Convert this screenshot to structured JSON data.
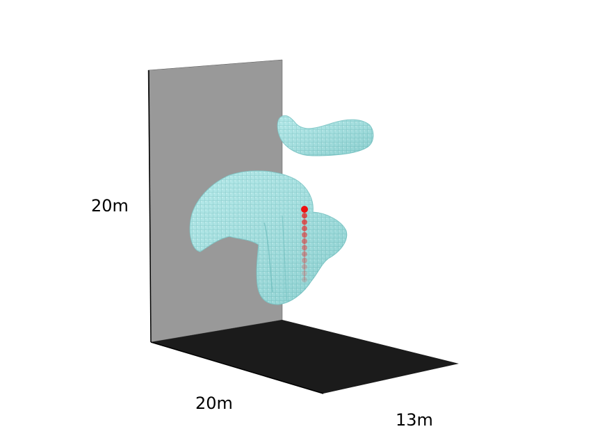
{
  "labels": {
    "height": "20m",
    "depth": "20m",
    "width": "13m"
  },
  "colors": {
    "back_wall": "#999999",
    "floor": "#1b1b1b",
    "obstacle": "#a4e3e3",
    "obstacle_edge": "#6cbcbc",
    "trajectory": "#ee1111"
  },
  "trajectory": {
    "point_count": 12
  }
}
